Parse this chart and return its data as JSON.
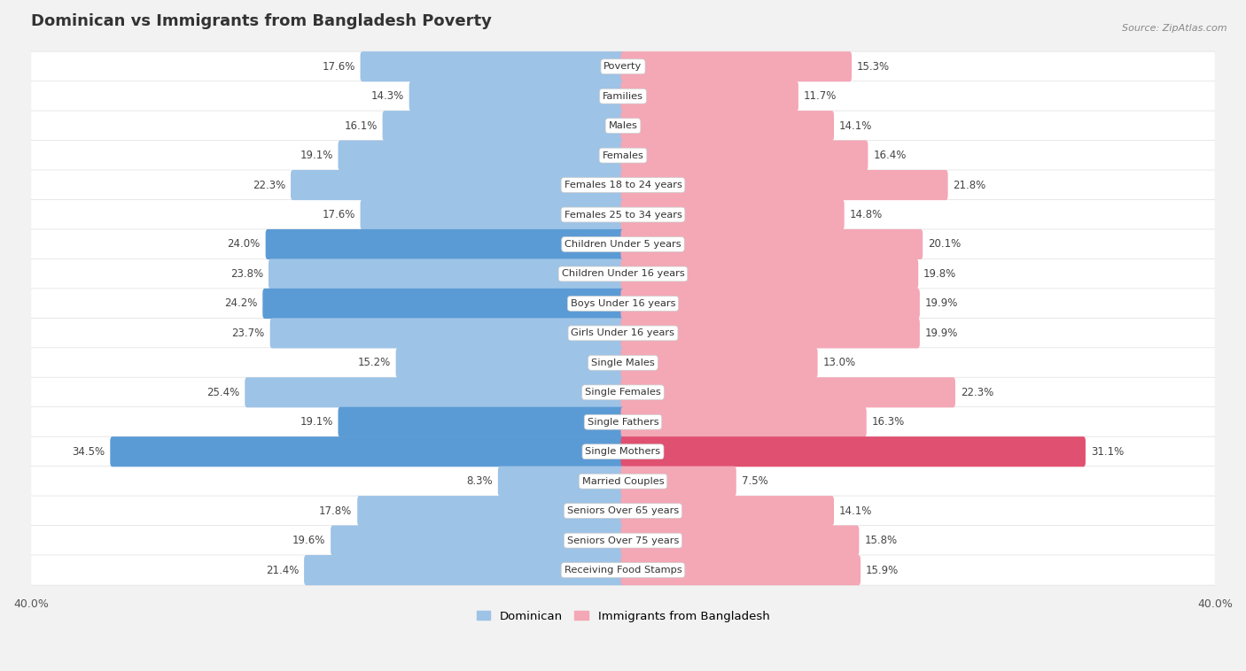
{
  "title": "Dominican vs Immigrants from Bangladesh Poverty",
  "source": "Source: ZipAtlas.com",
  "categories": [
    "Poverty",
    "Families",
    "Males",
    "Females",
    "Females 18 to 24 years",
    "Females 25 to 34 years",
    "Children Under 5 years",
    "Children Under 16 years",
    "Boys Under 16 years",
    "Girls Under 16 years",
    "Single Males",
    "Single Females",
    "Single Fathers",
    "Single Mothers",
    "Married Couples",
    "Seniors Over 65 years",
    "Seniors Over 75 years",
    "Receiving Food Stamps"
  ],
  "dominican": [
    17.6,
    14.3,
    16.1,
    19.1,
    22.3,
    17.6,
    24.0,
    23.8,
    24.2,
    23.7,
    15.2,
    25.4,
    19.1,
    34.5,
    8.3,
    17.8,
    19.6,
    21.4
  ],
  "bangladesh": [
    15.3,
    11.7,
    14.1,
    16.4,
    21.8,
    14.8,
    20.1,
    19.8,
    19.9,
    19.9,
    13.0,
    22.3,
    16.3,
    31.1,
    7.5,
    14.1,
    15.8,
    15.9
  ],
  "dominican_color": "#9dc3e6",
  "bangladesh_color": "#f4a7b5",
  "dominican_highlight_indices": [
    6,
    8,
    12,
    13
  ],
  "bangladesh_highlight_indices": [
    13
  ],
  "dominican_highlight_color": "#5b9bd5",
  "bangladesh_highlight_color": "#e05070",
  "background_color": "#f2f2f2",
  "row_bg_color": "#ffffff",
  "row_alt_color": "#f7f7f7",
  "xlim": 40.0,
  "bar_height": 0.72,
  "legend_dominican": "Dominican",
  "legend_bangladesh": "Immigrants from Bangladesh"
}
